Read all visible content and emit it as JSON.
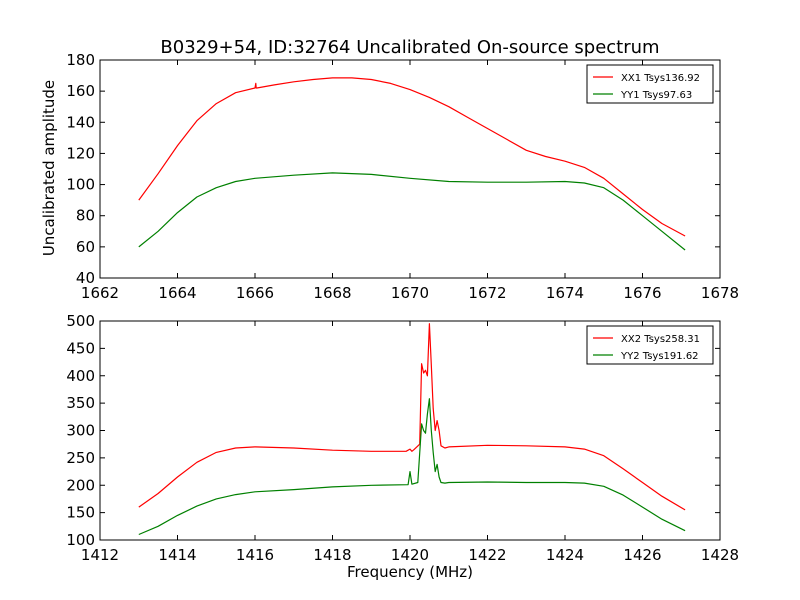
{
  "chart_data": [
    {
      "type": "line",
      "title": "B0329+54, ID:32764 Uncalibrated On-source spectrum",
      "xlabel": "",
      "ylabel": "Uncalibrated amplitude",
      "xlim": [
        1662,
        1678
      ],
      "ylim": [
        40,
        180
      ],
      "xticks": [
        "1662",
        "1664",
        "1666",
        "1668",
        "1670",
        "1672",
        "1674",
        "1676",
        "1678"
      ],
      "yticks": [
        "40",
        "60",
        "80",
        "100",
        "120",
        "140",
        "160",
        "180"
      ],
      "legend_position": "top-right",
      "series": [
        {
          "name": "XX1 Tsys136.92",
          "color": "#ff0000",
          "x": [
            1663.0,
            1663.5,
            1664.0,
            1664.5,
            1665.0,
            1665.5,
            1666.0,
            1666.02,
            1666.03,
            1666.05,
            1666.5,
            1667.0,
            1667.5,
            1668.0,
            1668.5,
            1669.0,
            1669.5,
            1670.0,
            1670.5,
            1671.0,
            1671.5,
            1672.0,
            1672.5,
            1673.0,
            1673.5,
            1674.0,
            1674.5,
            1675.0,
            1675.5,
            1676.0,
            1676.5,
            1677.1
          ],
          "y": [
            90,
            107,
            125,
            141,
            152,
            159,
            162,
            165,
            162,
            162,
            164,
            166,
            167.5,
            168.5,
            168.5,
            167.5,
            165,
            161,
            156,
            150,
            143,
            136,
            129,
            122,
            118,
            115,
            111,
            104,
            94,
            84,
            75,
            67
          ]
        },
        {
          "name": "YY1 Tsys97.63",
          "color": "#008000",
          "x": [
            1663.0,
            1663.5,
            1664.0,
            1664.5,
            1665.0,
            1665.5,
            1666.0,
            1667.0,
            1668.0,
            1669.0,
            1670.0,
            1671.0,
            1672.0,
            1673.0,
            1674.0,
            1674.5,
            1675.0,
            1675.5,
            1676.0,
            1676.5,
            1677.1
          ],
          "y": [
            60,
            70,
            82,
            92,
            98,
            102,
            104,
            106,
            107.5,
            106.5,
            104,
            102,
            101.5,
            101.5,
            102,
            101,
            98,
            90,
            80,
            70,
            58
          ]
        }
      ]
    },
    {
      "type": "line",
      "title": "",
      "xlabel": "Frequency (MHz)",
      "ylabel": "",
      "xlim": [
        1412,
        1428
      ],
      "ylim": [
        100,
        500
      ],
      "xticks": [
        "1412",
        "1414",
        "1416",
        "1418",
        "1420",
        "1422",
        "1424",
        "1426",
        "1428"
      ],
      "yticks": [
        "100",
        "150",
        "200",
        "250",
        "300",
        "350",
        "400",
        "450",
        "500"
      ],
      "legend_position": "top-right",
      "series": [
        {
          "name": "XX2 Tsys258.31",
          "color": "#ff0000",
          "x": [
            1413.0,
            1413.5,
            1414.0,
            1414.5,
            1415.0,
            1415.5,
            1416.0,
            1417.0,
            1418.0,
            1419.0,
            1419.9,
            1420.0,
            1420.05,
            1420.1,
            1420.25,
            1420.3,
            1420.35,
            1420.4,
            1420.45,
            1420.5,
            1420.55,
            1420.6,
            1420.65,
            1420.7,
            1420.75,
            1420.8,
            1420.9,
            1421.0,
            1422.0,
            1423.0,
            1424.0,
            1424.5,
            1425.0,
            1425.5,
            1426.0,
            1426.5,
            1427.1
          ],
          "y": [
            160,
            185,
            215,
            242,
            260,
            268,
            270,
            268,
            264,
            262,
            262,
            266,
            262,
            265,
            275,
            422,
            405,
            410,
            400,
            495,
            420,
            340,
            300,
            318,
            300,
            272,
            268,
            270,
            273,
            272,
            270,
            266,
            254,
            230,
            205,
            180,
            155
          ]
        },
        {
          "name": "YY2 Tsys191.62",
          "color": "#008000",
          "x": [
            1413.0,
            1413.5,
            1414.0,
            1414.5,
            1415.0,
            1415.5,
            1416.0,
            1417.0,
            1418.0,
            1419.0,
            1419.95,
            1420.0,
            1420.05,
            1420.2,
            1420.3,
            1420.35,
            1420.4,
            1420.45,
            1420.5,
            1420.55,
            1420.6,
            1420.65,
            1420.7,
            1420.75,
            1420.8,
            1420.9,
            1421.0,
            1422.0,
            1423.0,
            1424.0,
            1424.5,
            1425.0,
            1425.5,
            1426.0,
            1426.5,
            1427.1
          ],
          "y": [
            110,
            125,
            145,
            162,
            175,
            183,
            188,
            192,
            197,
            200,
            201,
            225,
            202,
            205,
            312,
            300,
            295,
            330,
            358,
            300,
            260,
            225,
            238,
            215,
            205,
            204,
            205,
            206,
            205,
            205,
            204,
            198,
            182,
            160,
            138,
            117
          ]
        }
      ]
    }
  ]
}
